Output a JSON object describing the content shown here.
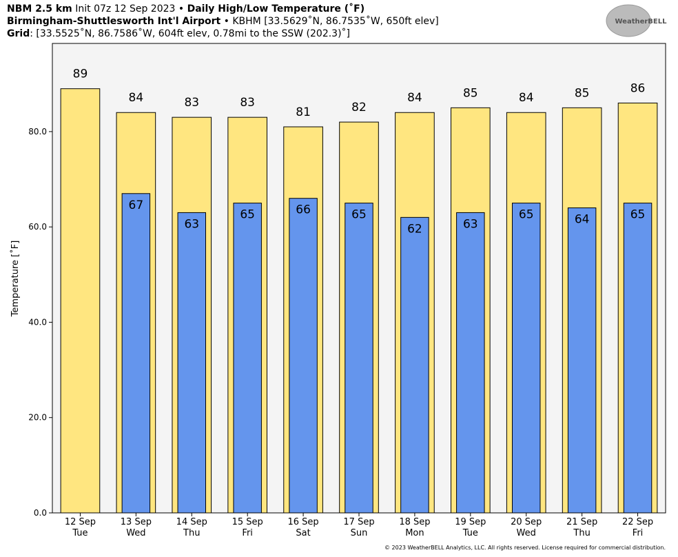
{
  "header": {
    "model": "NBM 2.5 km",
    "init": "Init 07z 12 Sep 2023 •",
    "product": "Daily High/Low Temperature (˚F)",
    "station": "Birmingham-Shuttlesworth Int'l Airport",
    "station_info": "• KBHM [33.5629˚N, 86.7535˚W, 650ft elev]",
    "grid_label": "Grid",
    "grid_info": ": [33.5525˚N, 86.7586˚W, 604ft elev, 0.78mi to the SSW (202.3)˚]"
  },
  "logo": "WeatherBELL",
  "footer": "© 2023 WeatherBELL Analytics, LLC. All rights reserved. License required for commercial distribution.",
  "chart_data": {
    "type": "bar",
    "ylabel": "Temperature [˚F]",
    "categories": [
      "12 Sep",
      "13 Sep",
      "14 Sep",
      "15 Sep",
      "16 Sep",
      "17 Sep",
      "18 Sep",
      "19 Sep",
      "20 Sep",
      "21 Sep",
      "22 Sep"
    ],
    "weekdays": [
      "Tue",
      "Wed",
      "Thu",
      "Fri",
      "Sat",
      "Sun",
      "Mon",
      "Tue",
      "Wed",
      "Thu",
      "Fri"
    ],
    "series": [
      {
        "name": "High",
        "color": "#ffe680",
        "values": [
          89,
          84,
          83,
          83,
          81,
          82,
          84,
          85,
          84,
          85,
          86
        ]
      },
      {
        "name": "Low",
        "color": "#6495ed",
        "values": [
          null,
          67,
          63,
          65,
          66,
          65,
          62,
          63,
          65,
          64,
          65
        ]
      }
    ],
    "ylim": [
      0,
      98.5
    ],
    "yticks": [
      {
        "value": 0,
        "label": "0.0"
      },
      {
        "value": 20,
        "label": "20.0"
      },
      {
        "value": 40,
        "label": "40.0"
      },
      {
        "value": 60,
        "label": "60.0"
      },
      {
        "value": 80,
        "label": "80.0"
      }
    ]
  }
}
